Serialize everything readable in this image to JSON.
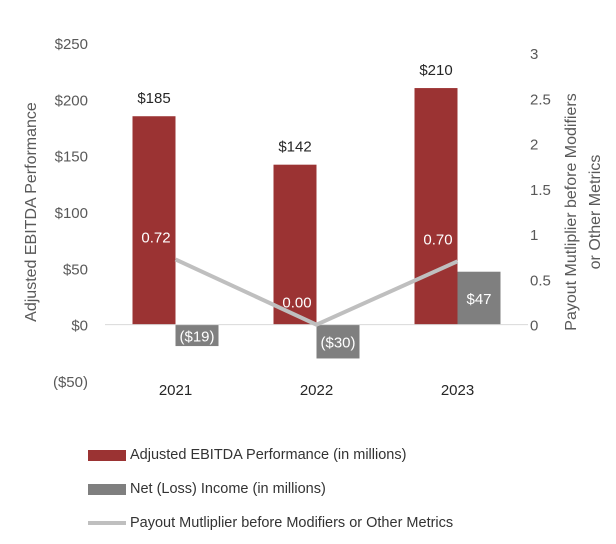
{
  "colors": {
    "ebitda": "#9B3333",
    "net_income": "#7F7F7F",
    "payout": "#BFBFBF",
    "axis_text": "#595959",
    "label_dark": "#262626",
    "label_light": "#FFFFFF"
  },
  "chart_data": {
    "type": "bar",
    "categories": [
      "2021",
      "2022",
      "2023"
    ],
    "series": [
      {
        "name": "Adjusted EBITDA Performance (in millions)",
        "kind": "bar",
        "axis": "left",
        "values": [
          185,
          142,
          210
        ],
        "labels": [
          "$185",
          "$142",
          "$210"
        ]
      },
      {
        "name": "Net (Loss) Income (in millions)",
        "kind": "bar",
        "axis": "left",
        "values": [
          -19,
          -30,
          47
        ],
        "labels": [
          "($19)",
          "($30)",
          "$47"
        ]
      },
      {
        "name": "Payout Mutliplier before Modifiers or Other Metrics",
        "kind": "line",
        "axis": "right",
        "values": [
          0.72,
          0.0,
          0.7
        ],
        "labels": [
          "0.72",
          "0.00",
          "0.70"
        ]
      }
    ],
    "y_left": {
      "label": "Adjusted EBITDA Performance",
      "range": [
        -50,
        250
      ],
      "ticks": [
        250,
        200,
        150,
        100,
        50,
        0,
        -50
      ],
      "tick_labels": [
        "$250",
        "$200",
        "$150",
        "$100",
        "$50",
        "$0",
        "($50)"
      ]
    },
    "y_right": {
      "label_line1": "Payout Mutliplier before Modifiers",
      "label_line2": "or Other Metrics",
      "range": [
        0,
        3
      ],
      "ticks": [
        3,
        2.5,
        2,
        1.5,
        1,
        0.5,
        0
      ],
      "tick_labels": [
        "3",
        "2.5",
        "2",
        "1.5",
        "1",
        "0.5",
        "0"
      ]
    },
    "grid": false,
    "legend_position": "bottom"
  }
}
